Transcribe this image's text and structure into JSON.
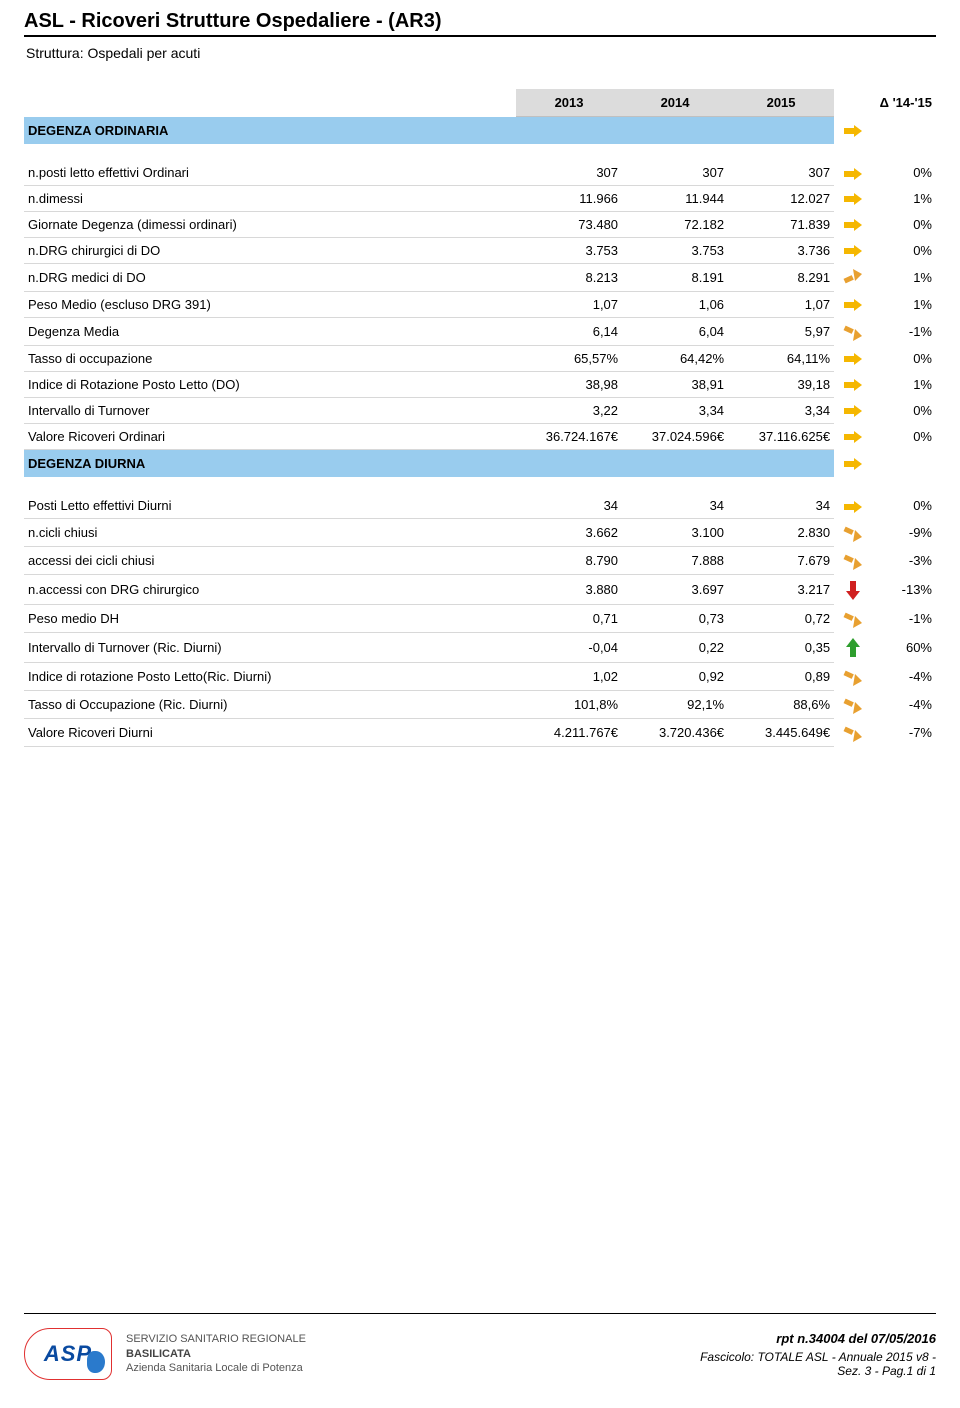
{
  "header": {
    "title": "ASL - Ricoveri Strutture Ospedaliere - (AR3)",
    "subtitle": "Struttura: Ospedali per acuti"
  },
  "columns": {
    "c1": "2013",
    "c2": "2014",
    "c3": "2015",
    "delta": "Δ '14-'15"
  },
  "section1": {
    "title": "DEGENZA ORDINARIA",
    "trend": "flat"
  },
  "rows1": [
    {
      "label": "n.posti letto effettivi Ordinari",
      "v1": "307",
      "v2": "307",
      "v3": "307",
      "trend": "flat",
      "delta": "0%"
    },
    {
      "label": "n.dimessi",
      "v1": "11.966",
      "v2": "11.944",
      "v3": "12.027",
      "trend": "flat",
      "delta": "1%"
    },
    {
      "label": "Giornate Degenza (dimessi ordinari)",
      "v1": "73.480",
      "v2": "72.182",
      "v3": "71.839",
      "trend": "flat",
      "delta": "0%"
    },
    {
      "label": "n.DRG chirurgici di DO",
      "v1": "3.753",
      "v2": "3.753",
      "v3": "3.736",
      "trend": "flat",
      "delta": "0%"
    },
    {
      "label": "n.DRG medici di DO",
      "v1": "8.213",
      "v2": "8.191",
      "v3": "8.291",
      "trend": "upslight",
      "delta": "1%"
    },
    {
      "label": "Peso Medio (escluso DRG 391)",
      "v1": "1,07",
      "v2": "1,06",
      "v3": "1,07",
      "trend": "flat",
      "delta": "1%"
    },
    {
      "label": "Degenza Media",
      "v1": "6,14",
      "v2": "6,04",
      "v3": "5,97",
      "trend": "downslight",
      "delta": "-1%"
    },
    {
      "label": "Tasso di occupazione",
      "v1": "65,57%",
      "v2": "64,42%",
      "v3": "64,11%",
      "trend": "flat",
      "delta": "0%"
    },
    {
      "label": "Indice di Rotazione Posto Letto (DO)",
      "v1": "38,98",
      "v2": "38,91",
      "v3": "39,18",
      "trend": "flat",
      "delta": "1%"
    },
    {
      "label": "Intervallo di Turnover",
      "v1": "3,22",
      "v2": "3,34",
      "v3": "3,34",
      "trend": "flat",
      "delta": "0%"
    },
    {
      "label": "Valore Ricoveri Ordinari",
      "v1": "36.724.167€",
      "v2": "37.024.596€",
      "v3": "37.116.625€",
      "trend": "flat",
      "delta": "0%"
    }
  ],
  "section2": {
    "title": "DEGENZA DIURNA",
    "trend": "flat"
  },
  "rows2": [
    {
      "label": "Posti Letto effettivi Diurni",
      "v1": "34",
      "v2": "34",
      "v3": "34",
      "trend": "flat",
      "delta": "0%"
    },
    {
      "label": "n.cicli chiusi",
      "v1": "3.662",
      "v2": "3.100",
      "v3": "2.830",
      "trend": "downslight",
      "delta": "-9%"
    },
    {
      "label": "accessi dei cicli chiusi",
      "v1": "8.790",
      "v2": "7.888",
      "v3": "7.679",
      "trend": "downslight",
      "delta": "-3%"
    },
    {
      "label": "n.accessi con DRG  chirurgico",
      "v1": "3.880",
      "v2": "3.697",
      "v3": "3.217",
      "trend": "down",
      "delta": "-13%"
    },
    {
      "label": "Peso medio DH",
      "v1": "0,71",
      "v2": "0,73",
      "v3": "0,72",
      "trend": "downslight",
      "delta": "-1%"
    },
    {
      "label": "Intervallo di Turnover (Ric. Diurni)",
      "v1": "-0,04",
      "v2": "0,22",
      "v3": "0,35",
      "trend": "up",
      "delta": "60%"
    },
    {
      "label": "Indice di rotazione Posto Letto(Ric. Diurni)",
      "v1": "1,02",
      "v2": "0,92",
      "v3": "0,89",
      "trend": "downslight",
      "delta": "-4%"
    },
    {
      "label": "Tasso di Occupazione (Ric. Diurni)",
      "v1": "101,8%",
      "v2": "92,1%",
      "v3": "88,6%",
      "trend": "downslight",
      "delta": "-4%"
    },
    {
      "label": "Valore Ricoveri Diurni",
      "v1": "4.211.767€",
      "v2": "3.720.436€",
      "v3": "3.445.649€",
      "trend": "downslight",
      "delta": "-7%"
    }
  ],
  "footer": {
    "logo_text": "ASP",
    "org_l1": "SERVIZIO SANITARIO REGIONALE",
    "org_l2": "BASILICATA",
    "org_l3": "Azienda Sanitaria Locale di Potenza",
    "rpt": "rpt n.34004 del 07/05/2016",
    "fascicolo_l1": "Fascicolo: TOTALE ASL - Annuale 2015 v8 -",
    "fascicolo_l2": "Sez. 3 - Pag.1 di 1"
  },
  "style": {
    "header_gray": "#dcdcdc",
    "section_blue": "#99ccee",
    "row_border": "#d8d8d8",
    "arrow_flat": "#f5b700",
    "arrow_up_slight": "#e8a030",
    "arrow_down_slight": "#e8a030",
    "arrow_up": "#2e9e2e",
    "arrow_down": "#d02020",
    "font_size_body": 13,
    "font_size_title": 20
  }
}
